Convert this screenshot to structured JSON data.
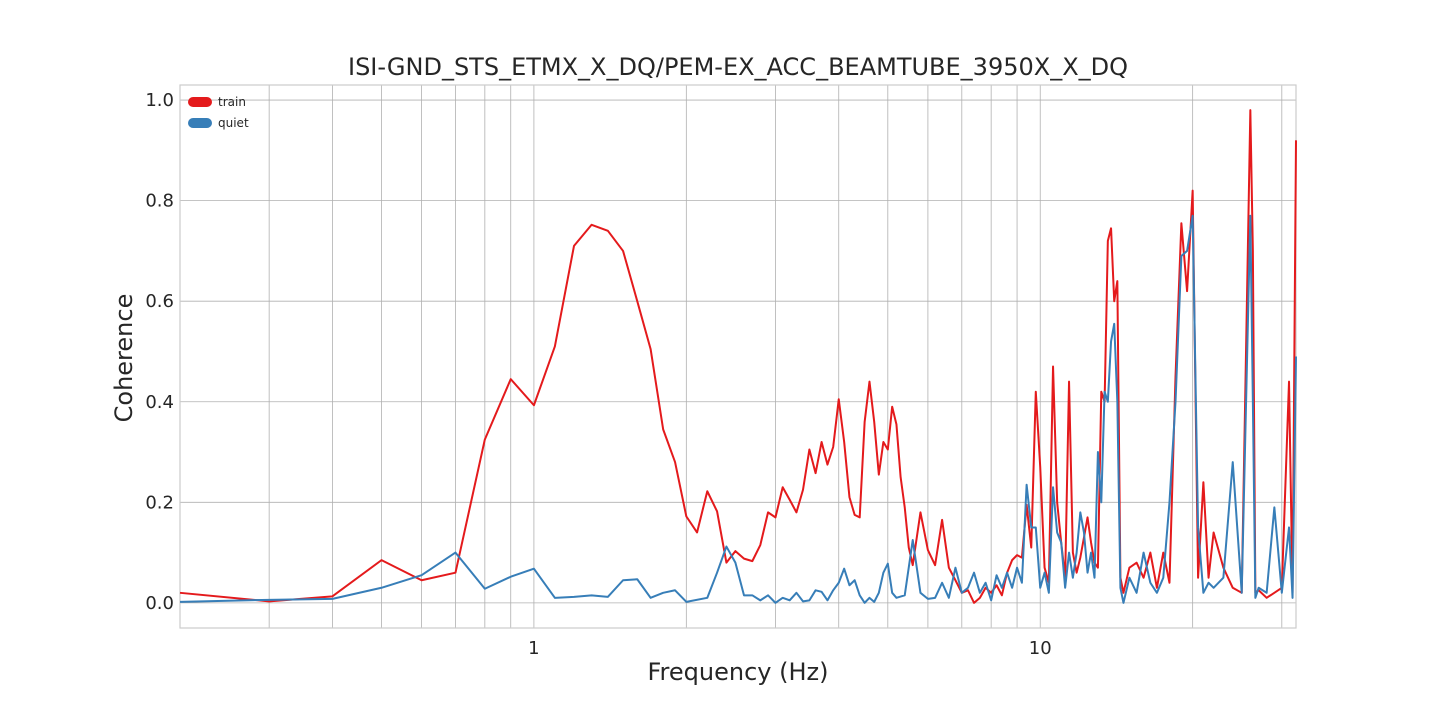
{
  "chart_data": {
    "type": "line",
    "title": "ISI-GND_STS_ETMX_X_DQ/PEM-EX_ACC_BEAMTUBE_3950X_X_DQ",
    "xlabel": "Frequency (Hz)",
    "ylabel": "Coherence",
    "xscale": "log",
    "xlim": [
      0.2,
      32
    ],
    "ylim": [
      -0.05,
      1.03
    ],
    "x_ticks": [
      {
        "value": 1,
        "label": "1"
      },
      {
        "value": 10,
        "label": "10"
      }
    ],
    "y_ticks": [
      {
        "value": 0.0,
        "label": "0.0"
      },
      {
        "value": 0.2,
        "label": "0.2"
      },
      {
        "value": 0.4,
        "label": "0.4"
      },
      {
        "value": 0.6,
        "label": "0.6"
      },
      {
        "value": 0.8,
        "label": "0.8"
      },
      {
        "value": 1.0,
        "label": "1.0"
      }
    ],
    "grid": true,
    "legend_position": "top-left",
    "series": [
      {
        "name": "train",
        "color": "#e41a1c",
        "points": [
          [
            0.2,
            0.02
          ],
          [
            0.3,
            0.003
          ],
          [
            0.4,
            0.013
          ],
          [
            0.5,
            0.085
          ],
          [
            0.6,
            0.045
          ],
          [
            0.7,
            0.06
          ],
          [
            0.8,
            0.325
          ],
          [
            0.9,
            0.445
          ],
          [
            1.0,
            0.393
          ],
          [
            1.1,
            0.51
          ],
          [
            1.2,
            0.71
          ],
          [
            1.3,
            0.752
          ],
          [
            1.4,
            0.74
          ],
          [
            1.5,
            0.7
          ],
          [
            1.6,
            0.6
          ],
          [
            1.7,
            0.505
          ],
          [
            1.8,
            0.345
          ],
          [
            1.9,
            0.28
          ],
          [
            2.0,
            0.172
          ],
          [
            2.1,
            0.14
          ],
          [
            2.2,
            0.222
          ],
          [
            2.3,
            0.182
          ],
          [
            2.4,
            0.08
          ],
          [
            2.5,
            0.103
          ],
          [
            2.6,
            0.088
          ],
          [
            2.7,
            0.083
          ],
          [
            2.8,
            0.115
          ],
          [
            2.9,
            0.18
          ],
          [
            3.0,
            0.17
          ],
          [
            3.1,
            0.23
          ],
          [
            3.2,
            0.205
          ],
          [
            3.3,
            0.18
          ],
          [
            3.4,
            0.225
          ],
          [
            3.5,
            0.305
          ],
          [
            3.6,
            0.258
          ],
          [
            3.7,
            0.32
          ],
          [
            3.8,
            0.275
          ],
          [
            3.9,
            0.31
          ],
          [
            4.0,
            0.405
          ],
          [
            4.1,
            0.32
          ],
          [
            4.2,
            0.21
          ],
          [
            4.3,
            0.175
          ],
          [
            4.4,
            0.17
          ],
          [
            4.5,
            0.36
          ],
          [
            4.6,
            0.44
          ],
          [
            4.7,
            0.36
          ],
          [
            4.8,
            0.255
          ],
          [
            4.9,
            0.32
          ],
          [
            5.0,
            0.305
          ],
          [
            5.1,
            0.39
          ],
          [
            5.2,
            0.355
          ],
          [
            5.3,
            0.25
          ],
          [
            5.4,
            0.19
          ],
          [
            5.5,
            0.11
          ],
          [
            5.6,
            0.075
          ],
          [
            5.8,
            0.18
          ],
          [
            6.0,
            0.105
          ],
          [
            6.2,
            0.075
          ],
          [
            6.4,
            0.165
          ],
          [
            6.6,
            0.07
          ],
          [
            6.8,
            0.045
          ],
          [
            7.0,
            0.02
          ],
          [
            7.2,
            0.025
          ],
          [
            7.4,
            0.0
          ],
          [
            7.6,
            0.01
          ],
          [
            7.8,
            0.03
          ],
          [
            8.0,
            0.02
          ],
          [
            8.2,
            0.035
          ],
          [
            8.4,
            0.015
          ],
          [
            8.6,
            0.06
          ],
          [
            8.8,
            0.085
          ],
          [
            9.0,
            0.095
          ],
          [
            9.2,
            0.09
          ],
          [
            9.4,
            0.195
          ],
          [
            9.6,
            0.11
          ],
          [
            9.8,
            0.42
          ],
          [
            10.0,
            0.27
          ],
          [
            10.2,
            0.07
          ],
          [
            10.4,
            0.04
          ],
          [
            10.6,
            0.47
          ],
          [
            10.8,
            0.2
          ],
          [
            11.0,
            0.12
          ],
          [
            11.2,
            0.05
          ],
          [
            11.4,
            0.44
          ],
          [
            11.6,
            0.1
          ],
          [
            11.8,
            0.06
          ],
          [
            12.0,
            0.09
          ],
          [
            12.2,
            0.13
          ],
          [
            12.4,
            0.17
          ],
          [
            12.6,
            0.12
          ],
          [
            12.8,
            0.08
          ],
          [
            13.0,
            0.07
          ],
          [
            13.2,
            0.42
          ],
          [
            13.4,
            0.4
          ],
          [
            13.6,
            0.72
          ],
          [
            13.8,
            0.745
          ],
          [
            14.0,
            0.6
          ],
          [
            14.2,
            0.64
          ],
          [
            14.4,
            0.05
          ],
          [
            14.6,
            0.02
          ],
          [
            15.0,
            0.07
          ],
          [
            15.5,
            0.08
          ],
          [
            16.0,
            0.05
          ],
          [
            16.5,
            0.1
          ],
          [
            17.0,
            0.03
          ],
          [
            17.5,
            0.1
          ],
          [
            18.0,
            0.04
          ],
          [
            18.5,
            0.45
          ],
          [
            19.0,
            0.755
          ],
          [
            19.5,
            0.62
          ],
          [
            20.0,
            0.82
          ],
          [
            20.5,
            0.05
          ],
          [
            21.0,
            0.24
          ],
          [
            21.5,
            0.05
          ],
          [
            22.0,
            0.14
          ],
          [
            23.0,
            0.07
          ],
          [
            24.0,
            0.03
          ],
          [
            25.0,
            0.02
          ],
          [
            26.0,
            0.98
          ],
          [
            26.3,
            0.7
          ],
          [
            26.6,
            0.02
          ],
          [
            27.0,
            0.025
          ],
          [
            28.0,
            0.01
          ],
          [
            29.0,
            0.02
          ],
          [
            30.0,
            0.03
          ],
          [
            31.0,
            0.44
          ],
          [
            31.5,
            0.02
          ],
          [
            32.0,
            0.92
          ]
        ]
      },
      {
        "name": "quiet",
        "color": "#377eb8",
        "points": [
          [
            0.2,
            0.002
          ],
          [
            0.3,
            0.006
          ],
          [
            0.4,
            0.008
          ],
          [
            0.5,
            0.03
          ],
          [
            0.6,
            0.055
          ],
          [
            0.7,
            0.1
          ],
          [
            0.8,
            0.028
          ],
          [
            0.9,
            0.052
          ],
          [
            1.0,
            0.068
          ],
          [
            1.1,
            0.01
          ],
          [
            1.2,
            0.012
          ],
          [
            1.3,
            0.015
          ],
          [
            1.4,
            0.012
          ],
          [
            1.5,
            0.045
          ],
          [
            1.6,
            0.047
          ],
          [
            1.7,
            0.01
          ],
          [
            1.8,
            0.02
          ],
          [
            1.9,
            0.025
          ],
          [
            2.0,
            0.002
          ],
          [
            2.2,
            0.01
          ],
          [
            2.3,
            0.06
          ],
          [
            2.4,
            0.112
          ],
          [
            2.5,
            0.08
          ],
          [
            2.6,
            0.015
          ],
          [
            2.7,
            0.015
          ],
          [
            2.8,
            0.005
          ],
          [
            2.9,
            0.015
          ],
          [
            3.0,
            0.0
          ],
          [
            3.1,
            0.01
          ],
          [
            3.2,
            0.005
          ],
          [
            3.3,
            0.02
          ],
          [
            3.4,
            0.003
          ],
          [
            3.5,
            0.005
          ],
          [
            3.6,
            0.025
          ],
          [
            3.7,
            0.022
          ],
          [
            3.8,
            0.005
          ],
          [
            3.9,
            0.025
          ],
          [
            4.0,
            0.04
          ],
          [
            4.1,
            0.068
          ],
          [
            4.2,
            0.035
          ],
          [
            4.3,
            0.045
          ],
          [
            4.4,
            0.015
          ],
          [
            4.5,
            0.0
          ],
          [
            4.6,
            0.01
          ],
          [
            4.7,
            0.002
          ],
          [
            4.8,
            0.02
          ],
          [
            4.9,
            0.06
          ],
          [
            5.0,
            0.078
          ],
          [
            5.1,
            0.02
          ],
          [
            5.2,
            0.01
          ],
          [
            5.4,
            0.015
          ],
          [
            5.6,
            0.125
          ],
          [
            5.8,
            0.02
          ],
          [
            6.0,
            0.008
          ],
          [
            6.2,
            0.01
          ],
          [
            6.4,
            0.04
          ],
          [
            6.6,
            0.01
          ],
          [
            6.8,
            0.07
          ],
          [
            7.0,
            0.02
          ],
          [
            7.2,
            0.03
          ],
          [
            7.4,
            0.06
          ],
          [
            7.6,
            0.02
          ],
          [
            7.8,
            0.04
          ],
          [
            8.0,
            0.005
          ],
          [
            8.2,
            0.055
          ],
          [
            8.4,
            0.03
          ],
          [
            8.6,
            0.06
          ],
          [
            8.8,
            0.03
          ],
          [
            9.0,
            0.07
          ],
          [
            9.2,
            0.04
          ],
          [
            9.4,
            0.235
          ],
          [
            9.6,
            0.15
          ],
          [
            9.8,
            0.15
          ],
          [
            10.0,
            0.03
          ],
          [
            10.2,
            0.06
          ],
          [
            10.4,
            0.02
          ],
          [
            10.6,
            0.23
          ],
          [
            10.8,
            0.14
          ],
          [
            11.0,
            0.12
          ],
          [
            11.2,
            0.03
          ],
          [
            11.4,
            0.1
          ],
          [
            11.6,
            0.05
          ],
          [
            11.8,
            0.1
          ],
          [
            12.0,
            0.18
          ],
          [
            12.2,
            0.14
          ],
          [
            12.4,
            0.06
          ],
          [
            12.6,
            0.1
          ],
          [
            12.8,
            0.05
          ],
          [
            13.0,
            0.3
          ],
          [
            13.2,
            0.2
          ],
          [
            13.4,
            0.42
          ],
          [
            13.6,
            0.4
          ],
          [
            13.8,
            0.52
          ],
          [
            14.0,
            0.555
          ],
          [
            14.2,
            0.4
          ],
          [
            14.4,
            0.03
          ],
          [
            14.6,
            0.0
          ],
          [
            15.0,
            0.05
          ],
          [
            15.5,
            0.02
          ],
          [
            16.0,
            0.1
          ],
          [
            16.5,
            0.04
          ],
          [
            17.0,
            0.02
          ],
          [
            17.5,
            0.05
          ],
          [
            18.0,
            0.2
          ],
          [
            18.5,
            0.4
          ],
          [
            19.0,
            0.69
          ],
          [
            19.5,
            0.7
          ],
          [
            20.0,
            0.77
          ],
          [
            20.5,
            0.15
          ],
          [
            21.0,
            0.02
          ],
          [
            21.5,
            0.04
          ],
          [
            22.0,
            0.03
          ],
          [
            23.0,
            0.05
          ],
          [
            24.0,
            0.28
          ],
          [
            25.0,
            0.02
          ],
          [
            26.0,
            0.77
          ],
          [
            26.3,
            0.4
          ],
          [
            26.6,
            0.01
          ],
          [
            27.0,
            0.03
          ],
          [
            28.0,
            0.02
          ],
          [
            29.0,
            0.19
          ],
          [
            30.0,
            0.02
          ],
          [
            31.0,
            0.15
          ],
          [
            31.5,
            0.01
          ],
          [
            32.0,
            0.49
          ]
        ]
      }
    ]
  }
}
